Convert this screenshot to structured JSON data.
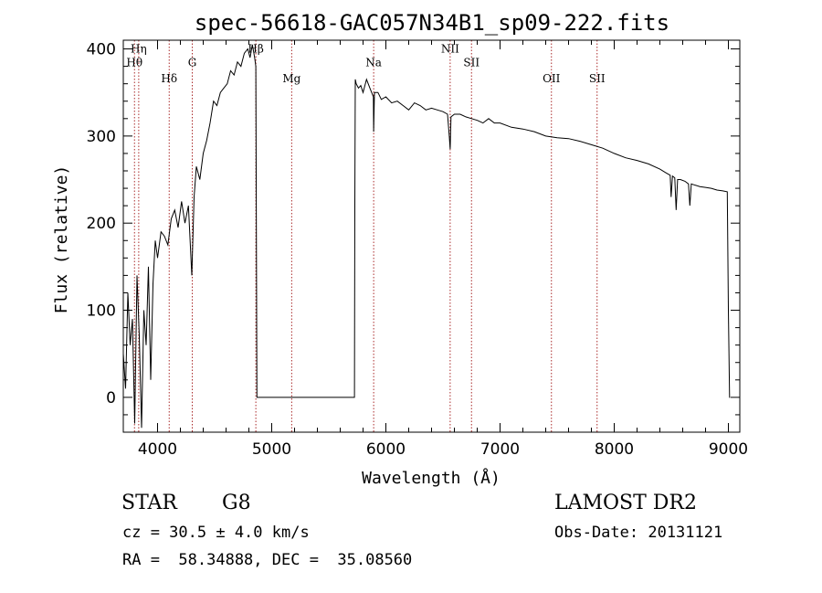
{
  "chart_data": {
    "type": "line",
    "title": "spec-56618-GAC057N34B1_sp09-222.fits",
    "xlabel": "Wavelength (Å)",
    "ylabel": "Flux (relative)",
    "xlim": [
      3700,
      9100
    ],
    "ylim": [
      -40,
      410
    ],
    "xticks": [
      4000,
      5000,
      6000,
      7000,
      8000,
      9000
    ],
    "yticks": [
      0,
      100,
      200,
      300,
      400
    ],
    "grid": false,
    "series": [
      {
        "x": [
          3700,
          3720,
          3740,
          3760,
          3780,
          3800,
          3820,
          3840,
          3860,
          3880,
          3900,
          3920,
          3940,
          3960,
          3980,
          4000,
          4030,
          4060,
          4090,
          4120,
          4150,
          4180,
          4210,
          4240,
          4270,
          4300,
          4320,
          4340,
          4370,
          4400,
          4430,
          4460,
          4490,
          4520,
          4550,
          4580,
          4610,
          4640,
          4670,
          4700,
          4730,
          4760,
          4790,
          4810,
          4830,
          4850,
          4861,
          4870,
          5000,
          5500,
          5725,
          5728,
          5732,
          5740,
          5760,
          5780,
          5800,
          5830,
          5860,
          5890,
          5893,
          5900,
          5930,
          5960,
          6000,
          6050,
          6100,
          6150,
          6200,
          6250,
          6300,
          6350,
          6400,
          6450,
          6500,
          6540,
          6555,
          6563,
          6570,
          6600,
          6650,
          6700,
          6750,
          6800,
          6850,
          6900,
          6950,
          7000,
          7100,
          7200,
          7300,
          7400,
          7500,
          7600,
          7700,
          7800,
          7900,
          8000,
          8100,
          8200,
          8300,
          8400,
          8450,
          8490,
          8498,
          8510,
          8530,
          8542,
          8555,
          8580,
          8620,
          8650,
          8662,
          8675,
          8700,
          8750,
          8800,
          8850,
          8900,
          8950,
          8990,
          9000,
          9010,
          9015
        ],
        "values": [
          50,
          10,
          120,
          60,
          90,
          -30,
          140,
          70,
          -35,
          100,
          60,
          150,
          20,
          130,
          180,
          160,
          190,
          185,
          175,
          205,
          215,
          195,
          225,
          200,
          220,
          140,
          230,
          265,
          250,
          280,
          295,
          315,
          340,
          335,
          350,
          355,
          360,
          375,
          370,
          385,
          380,
          395,
          400,
          390,
          405,
          390,
          380,
          0,
          0,
          0,
          0,
          220,
          365,
          360,
          355,
          358,
          350,
          365,
          355,
          345,
          305,
          350,
          350,
          342,
          345,
          338,
          340,
          335,
          330,
          338,
          335,
          330,
          332,
          330,
          328,
          325,
          300,
          285,
          322,
          325,
          325,
          322,
          320,
          318,
          315,
          320,
          315,
          315,
          310,
          308,
          305,
          300,
          298,
          297,
          294,
          290,
          286,
          280,
          275,
          272,
          268,
          262,
          258,
          255,
          230,
          254,
          252,
          215,
          250,
          250,
          248,
          245,
          220,
          245,
          244,
          242,
          241,
          240,
          238,
          237,
          236,
          100,
          0,
          0
        ]
      }
    ],
    "lines": [
      {
        "x": 3798,
        "label": "Hθ",
        "label_y": 380
      },
      {
        "x": 3835,
        "label": "Hη",
        "label_y": 396
      },
      {
        "x": 4102,
        "label": "Hδ",
        "label_y": 362
      },
      {
        "x": 4304,
        "label": "G",
        "label_y": 380
      },
      {
        "x": 4861,
        "label": "Hβ",
        "label_y": 396
      },
      {
        "x": 5175,
        "label": "Mg",
        "label_y": 362
      },
      {
        "x": 5893,
        "label": "Na",
        "label_y": 380
      },
      {
        "x": 6563,
        "label": "NII",
        "label_y": 396
      },
      {
        "x": 6750,
        "label": "SII",
        "label_y": 380
      },
      {
        "x": 7450,
        "label": "OII",
        "label_y": 362
      },
      {
        "x": 7850,
        "label": "SII",
        "label_y": 362
      }
    ],
    "line_color": "#aa2a2a",
    "curve_color": "#000000"
  },
  "info": {
    "class_label": "STAR",
    "subclass": "G8",
    "survey": "LAMOST DR2",
    "cz": "cz = 30.5 ± 4.0 km/s",
    "obs_date": "Obs-Date: 20131121",
    "radec": "RA =  58.34888, DEC =  35.08560"
  }
}
